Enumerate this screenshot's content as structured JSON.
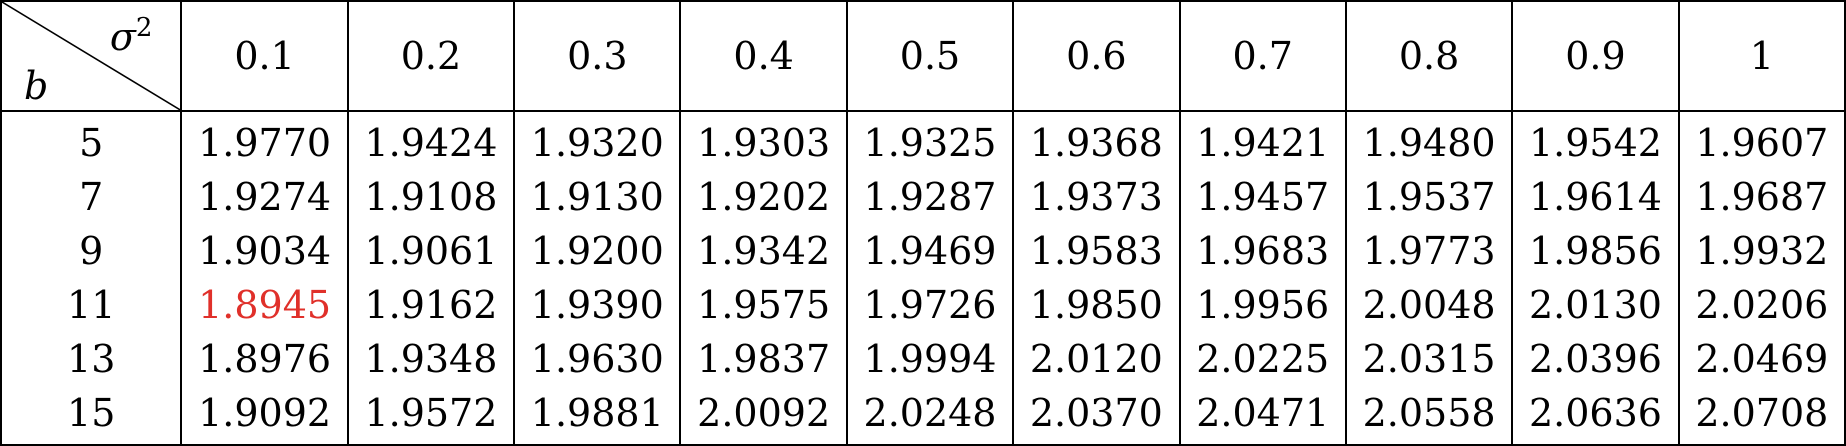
{
  "table": {
    "corner_col_label": "σ",
    "corner_col_sup": "2",
    "corner_row_label": "b",
    "columns": [
      "0.1",
      "0.2",
      "0.3",
      "0.4",
      "0.5",
      "0.6",
      "0.7",
      "0.8",
      "0.9",
      "1"
    ],
    "rows": [
      {
        "b": "5",
        "values": [
          "1.9770",
          "1.9424",
          "1.9320",
          "1.9303",
          "1.9325",
          "1.9368",
          "1.9421",
          "1.9480",
          "1.9542",
          "1.9607"
        ]
      },
      {
        "b": "7",
        "values": [
          "1.9274",
          "1.9108",
          "1.9130",
          "1.9202",
          "1.9287",
          "1.9373",
          "1.9457",
          "1.9537",
          "1.9614",
          "1.9687"
        ]
      },
      {
        "b": "9",
        "values": [
          "1.9034",
          "1.9061",
          "1.9200",
          "1.9342",
          "1.9469",
          "1.9583",
          "1.9683",
          "1.9773",
          "1.9856",
          "1.9932"
        ]
      },
      {
        "b": "11",
        "values": [
          "1.8945",
          "1.9162",
          "1.9390",
          "1.9575",
          "1.9726",
          "1.9850",
          "1.9956",
          "2.0048",
          "2.0130",
          "2.0206"
        ]
      },
      {
        "b": "13",
        "values": [
          "1.8976",
          "1.9348",
          "1.9630",
          "1.9837",
          "1.9994",
          "2.0120",
          "2.0225",
          "2.0315",
          "2.0396",
          "2.0469"
        ]
      },
      {
        "b": "15",
        "values": [
          "1.9092",
          "1.9572",
          "1.9881",
          "2.0092",
          "2.0248",
          "2.0370",
          "2.0471",
          "2.0558",
          "2.0636",
          "2.0708"
        ]
      }
    ],
    "highlight": {
      "row": 3,
      "col": 0,
      "color": "#e0302a"
    }
  }
}
